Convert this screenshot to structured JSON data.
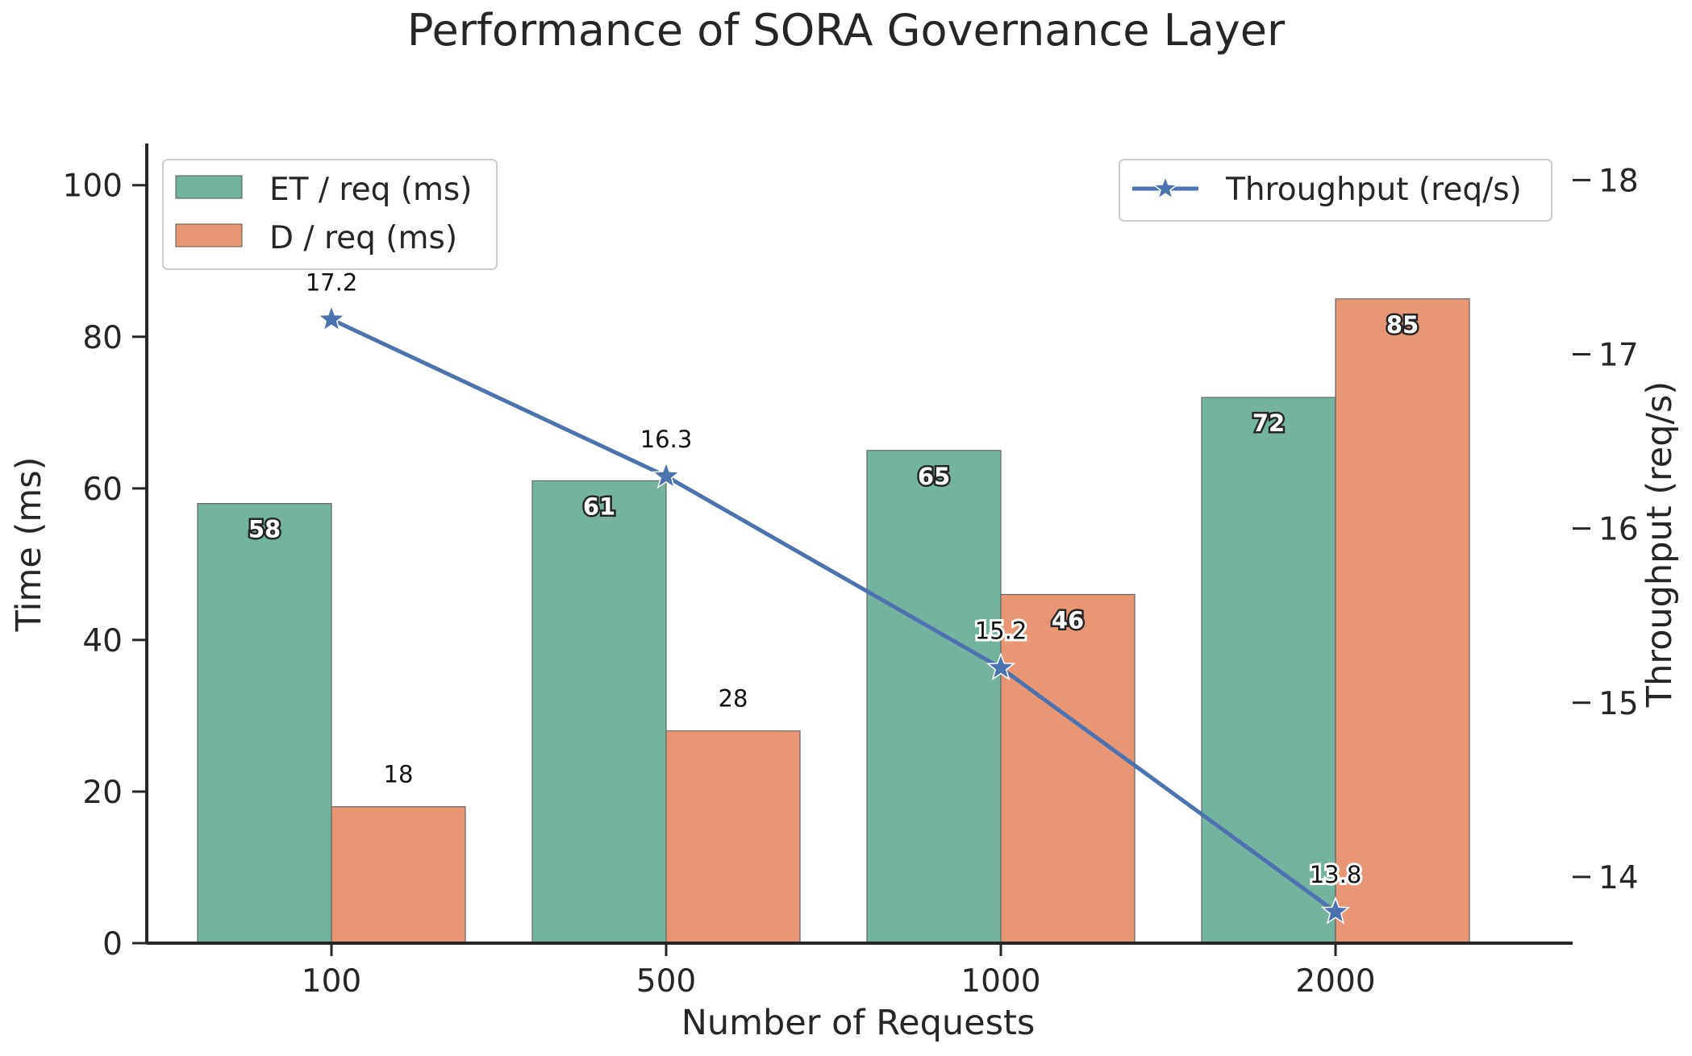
{
  "chart_data": {
    "type": "bar",
    "title": "Performance of SORA Governance Layer",
    "xlabel": "Number of Requests",
    "ylabel": "Time (ms)",
    "y2label": "Throughput (req/s)",
    "categories": [
      "100",
      "500",
      "1000",
      "2000"
    ],
    "ylim": [
      0,
      105.5
    ],
    "yticks": [
      0,
      20,
      40,
      60,
      80,
      100
    ],
    "y2lim": [
      13.62,
      18.21
    ],
    "y2ticks": [
      14,
      15,
      16,
      17,
      18
    ],
    "series": [
      {
        "name": "ET / req (ms)",
        "axis": "left",
        "kind": "bar",
        "color": "#73b49f",
        "values": [
          58,
          61,
          65,
          72
        ]
      },
      {
        "name": "D / req (ms)",
        "axis": "left",
        "kind": "bar",
        "color": "#e89674",
        "values": [
          18,
          28,
          46,
          85
        ]
      },
      {
        "name": "Throughput (req/s)",
        "axis": "right",
        "kind": "line",
        "marker": "star",
        "color": "#4c72b0",
        "values": [
          17.2,
          16.3,
          15.2,
          13.8
        ]
      }
    ],
    "bar_labels": {
      "ET": [
        "58",
        "61",
        "65",
        "72"
      ],
      "D": [
        "18",
        "28",
        "46",
        "85"
      ]
    },
    "point_labels": [
      "17.2",
      "16.3",
      "15.2",
      "13.8"
    ],
    "legend_left_position": "top-left",
    "legend_right_position": "top-right",
    "grid": false
  }
}
